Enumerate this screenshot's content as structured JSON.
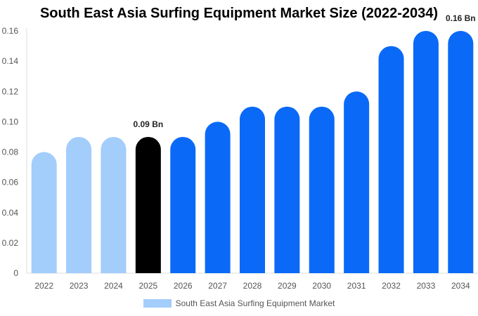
{
  "chart_data": {
    "type": "bar",
    "title": "South East Asia Surfing Equipment Market Size (2022-2034)",
    "xlabel": "",
    "ylabel": "",
    "categories": [
      "2022",
      "2023",
      "2024",
      "2025",
      "2026",
      "2027",
      "2028",
      "2029",
      "2030",
      "2031",
      "2032",
      "2033",
      "2034"
    ],
    "series": [
      {
        "name": "South East Asia Surfing Equipment Market",
        "values": [
          0.08,
          0.09,
          0.09,
          0.09,
          0.09,
          0.1,
          0.11,
          0.11,
          0.11,
          0.12,
          0.15,
          0.16,
          0.16
        ]
      }
    ],
    "ylim": [
      0,
      0.16
    ],
    "yticks": [
      "0",
      "0.02",
      "0.04",
      "0.06",
      "0.08",
      "0.10",
      "0.12",
      "0.14",
      "0.16"
    ],
    "data_labels": [
      {
        "category": "2025",
        "text": "0.09 Bn"
      },
      {
        "category": "2034",
        "text": "0.16 Bn"
      }
    ],
    "bar_colors": [
      "#a3cdfb",
      "#a3cdfb",
      "#a3cdfb",
      "#000000",
      "#0a6af7",
      "#0a6af7",
      "#0a6af7",
      "#0a6af7",
      "#0a6af7",
      "#0a6af7",
      "#0a6af7",
      "#0a6af7",
      "#0a6af7"
    ],
    "legend_color": "#a3cdfb",
    "legend_position": "bottom-center",
    "grid": false
  }
}
